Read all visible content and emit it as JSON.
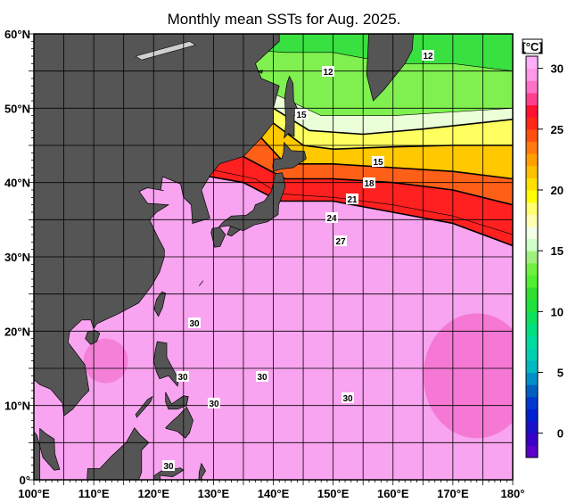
{
  "title": "Monthly mean SSTs for Aug. 2025.",
  "map": {
    "region": {
      "lon_range": [
        100,
        180
      ],
      "lat_range": [
        0,
        60
      ]
    },
    "grid_interval_deg": 5,
    "land_color": "#555555",
    "x_ticks": [
      "100°E",
      "110°E",
      "120°E",
      "130°E",
      "140°E",
      "150°E",
      "160°E",
      "170°E",
      "180°"
    ],
    "y_ticks": [
      "60°N",
      "50°N",
      "40°N",
      "30°N",
      "20°N",
      "10°N",
      "0°"
    ],
    "contour_labels": [
      "12",
      "12",
      "15",
      "15",
      "18",
      "21",
      "24",
      "27",
      "30",
      "30",
      "30",
      "30",
      "30",
      "30"
    ]
  },
  "colorbar": {
    "unit": "[°C]",
    "range": [
      -2,
      31
    ],
    "ticks": [
      "30",
      "25",
      "20",
      "15",
      "10",
      "5",
      "0"
    ],
    "colors": [
      "#5a00c8",
      "#3a00c8",
      "#1a10c8",
      "#0020d0",
      "#0038d0",
      "#0060c0",
      "#0090c8",
      "#00b8c0",
      "#00d0b0",
      "#00dca0",
      "#00e080",
      "#10e060",
      "#20e040",
      "#30e030",
      "#50f030",
      "#70f040",
      "#a0f080",
      "#d0ffc8",
      "#f4ffe8",
      "#ffffb0",
      "#ffff70",
      "#ffff00",
      "#ffe000",
      "#ffc000",
      "#ffa000",
      "#ff7a10",
      "#ff5010",
      "#ff2818",
      "#ff1030",
      "#ff4090",
      "#ff70c8",
      "#ff98e8",
      "#ffb0f8"
    ]
  }
}
